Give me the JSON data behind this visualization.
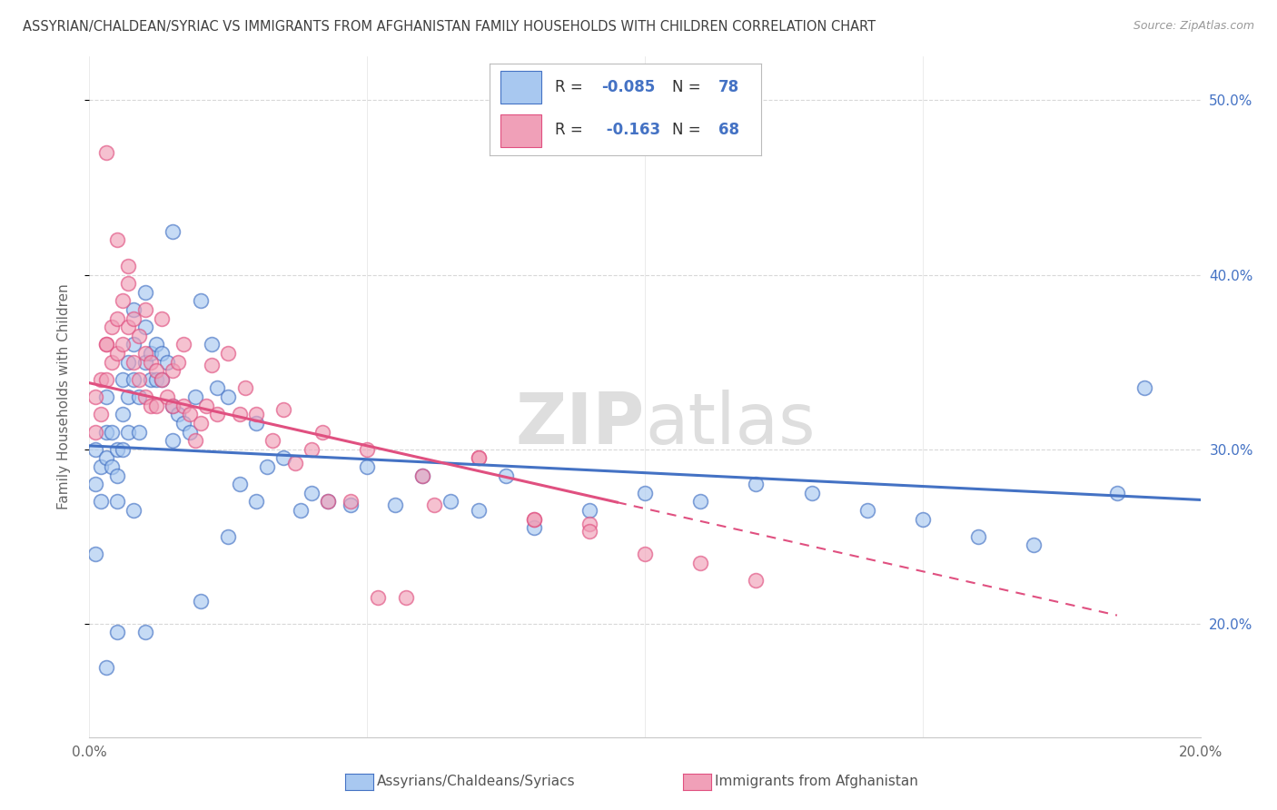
{
  "title": "ASSYRIAN/CHALDEAN/SYRIAC VS IMMIGRANTS FROM AFGHANISTAN FAMILY HOUSEHOLDS WITH CHILDREN CORRELATION CHART",
  "source": "Source: ZipAtlas.com",
  "ylabel": "Family Households with Children",
  "legend_label1": "Assyrians/Chaldeans/Syriacs",
  "legend_label2": "Immigrants from Afghanistan",
  "R1": -0.085,
  "N1": 78,
  "R2": -0.163,
  "N2": 68,
  "color_blue": "#a8c8f0",
  "color_pink": "#f0a0b8",
  "line_color_blue": "#4472C4",
  "line_color_pink": "#E05080",
  "bg_color": "#FFFFFF",
  "grid_color": "#C8C8C8",
  "title_color": "#404040",
  "right_axis_color": "#4472C4",
  "legend_text_color": "#4472C4",
  "xmin": 0.0,
  "xmax": 0.2,
  "ymin": 0.135,
  "ymax": 0.525,
  "blue_intercept": 0.302,
  "blue_slope": -0.155,
  "pink_intercept": 0.338,
  "pink_slope": -0.72,
  "blue_points_x": [
    0.001,
    0.001,
    0.002,
    0.002,
    0.003,
    0.003,
    0.003,
    0.004,
    0.004,
    0.005,
    0.005,
    0.005,
    0.006,
    0.006,
    0.006,
    0.007,
    0.007,
    0.007,
    0.008,
    0.008,
    0.008,
    0.009,
    0.009,
    0.01,
    0.01,
    0.01,
    0.011,
    0.011,
    0.012,
    0.012,
    0.013,
    0.013,
    0.014,
    0.015,
    0.015,
    0.016,
    0.017,
    0.018,
    0.019,
    0.02,
    0.022,
    0.023,
    0.025,
    0.027,
    0.03,
    0.032,
    0.035,
    0.038,
    0.04,
    0.043,
    0.047,
    0.05,
    0.055,
    0.06,
    0.065,
    0.07,
    0.075,
    0.08,
    0.09,
    0.1,
    0.11,
    0.12,
    0.13,
    0.14,
    0.15,
    0.16,
    0.17,
    0.185,
    0.19,
    0.001,
    0.003,
    0.005,
    0.008,
    0.01,
    0.015,
    0.02,
    0.025,
    0.03
  ],
  "blue_points_y": [
    0.3,
    0.28,
    0.29,
    0.27,
    0.31,
    0.295,
    0.33,
    0.31,
    0.29,
    0.3,
    0.285,
    0.27,
    0.34,
    0.32,
    0.3,
    0.35,
    0.33,
    0.31,
    0.38,
    0.36,
    0.34,
    0.33,
    0.31,
    0.39,
    0.37,
    0.35,
    0.355,
    0.34,
    0.36,
    0.34,
    0.355,
    0.34,
    0.35,
    0.325,
    0.305,
    0.32,
    0.315,
    0.31,
    0.33,
    0.385,
    0.36,
    0.335,
    0.33,
    0.28,
    0.315,
    0.29,
    0.295,
    0.265,
    0.275,
    0.27,
    0.268,
    0.29,
    0.268,
    0.285,
    0.27,
    0.265,
    0.285,
    0.255,
    0.265,
    0.275,
    0.27,
    0.28,
    0.275,
    0.265,
    0.26,
    0.25,
    0.245,
    0.275,
    0.335,
    0.24,
    0.175,
    0.195,
    0.265,
    0.195,
    0.425,
    0.213,
    0.25,
    0.27
  ],
  "pink_points_x": [
    0.001,
    0.001,
    0.002,
    0.002,
    0.003,
    0.003,
    0.003,
    0.004,
    0.004,
    0.005,
    0.005,
    0.006,
    0.006,
    0.007,
    0.007,
    0.008,
    0.008,
    0.009,
    0.009,
    0.01,
    0.01,
    0.011,
    0.011,
    0.012,
    0.012,
    0.013,
    0.014,
    0.015,
    0.015,
    0.016,
    0.017,
    0.018,
    0.019,
    0.02,
    0.021,
    0.023,
    0.025,
    0.027,
    0.03,
    0.033,
    0.037,
    0.04,
    0.043,
    0.047,
    0.052,
    0.057,
    0.062,
    0.07,
    0.08,
    0.09,
    0.1,
    0.11,
    0.12,
    0.003,
    0.005,
    0.007,
    0.01,
    0.013,
    0.017,
    0.022,
    0.028,
    0.035,
    0.042,
    0.05,
    0.06,
    0.07,
    0.08,
    0.09
  ],
  "pink_points_y": [
    0.33,
    0.31,
    0.34,
    0.32,
    0.36,
    0.34,
    0.36,
    0.37,
    0.35,
    0.375,
    0.355,
    0.385,
    0.36,
    0.395,
    0.37,
    0.375,
    0.35,
    0.365,
    0.34,
    0.355,
    0.33,
    0.35,
    0.325,
    0.345,
    0.325,
    0.34,
    0.33,
    0.345,
    0.325,
    0.35,
    0.325,
    0.32,
    0.305,
    0.315,
    0.325,
    0.32,
    0.355,
    0.32,
    0.32,
    0.305,
    0.292,
    0.3,
    0.27,
    0.27,
    0.215,
    0.215,
    0.268,
    0.295,
    0.26,
    0.257,
    0.24,
    0.235,
    0.225,
    0.47,
    0.42,
    0.405,
    0.38,
    0.375,
    0.36,
    0.348,
    0.335,
    0.323,
    0.31,
    0.3,
    0.285,
    0.295,
    0.26,
    0.253
  ]
}
